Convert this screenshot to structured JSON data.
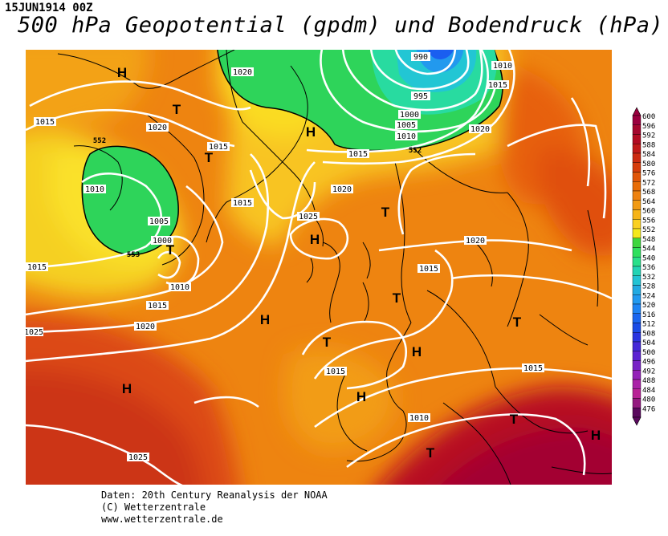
{
  "header": {
    "date": "15JUN1914 00Z",
    "title": "500 hPa Geopotential (gpdm) und Bodendruck (hPa)"
  },
  "map": {
    "pressure_centers": [
      {
        "label": "H",
        "kind": "high"
      },
      {
        "label": "T",
        "kind": "low"
      },
      {
        "label": "H",
        "kind": "high"
      },
      {
        "label": "T",
        "kind": "low"
      },
      {
        "label": "T",
        "kind": "low"
      },
      {
        "label": "H",
        "kind": "high"
      },
      {
        "label": "T",
        "kind": "low"
      },
      {
        "label": "H",
        "kind": "high"
      },
      {
        "label": "T",
        "kind": "low"
      },
      {
        "label": "T",
        "kind": "low"
      },
      {
        "label": "H",
        "kind": "high"
      },
      {
        "label": "T",
        "kind": "low"
      },
      {
        "label": "H",
        "kind": "high"
      },
      {
        "label": "H",
        "kind": "high"
      },
      {
        "label": "T",
        "kind": "low"
      },
      {
        "label": "T",
        "kind": "low"
      },
      {
        "label": "H",
        "kind": "high"
      }
    ],
    "isobar_labels": [
      "990",
      "995",
      "1000",
      "1005",
      "1010",
      "1010",
      "1015",
      "1015",
      "1020",
      "1015",
      "1020",
      "1015",
      "1020",
      "1015",
      "1010",
      "1005",
      "1000",
      "1010",
      "1015",
      "1020",
      "1025",
      "1020",
      "1025",
      "1020",
      "1015",
      "1015",
      "1015",
      "1015",
      "1010",
      "1025"
    ],
    "geopotential_labels": [
      "552",
      "553",
      "552"
    ],
    "colors": {
      "land_outline": "#000000",
      "isobar": "#ffffff",
      "geopotential_contour": "#000000"
    }
  },
  "legend": {
    "levels": [
      "600",
      "596",
      "592",
      "588",
      "584",
      "580",
      "576",
      "572",
      "568",
      "564",
      "560",
      "556",
      "552",
      "548",
      "544",
      "540",
      "536",
      "532",
      "528",
      "524",
      "520",
      "516",
      "512",
      "508",
      "504",
      "500",
      "496",
      "492",
      "488",
      "484",
      "480",
      "476"
    ],
    "colors": [
      "#9b003f",
      "#a5062e",
      "#b20a22",
      "#c01818",
      "#cc2a10",
      "#d63c0b",
      "#e05508",
      "#e86c06",
      "#ee8210",
      "#f29a12",
      "#f6b418",
      "#fad020",
      "#f4e81c",
      "#3ed63e",
      "#2ee05e",
      "#28e08a",
      "#22d4b4",
      "#22c4d4",
      "#22aae2",
      "#229af0",
      "#1e84f4",
      "#1a66f0",
      "#1a4ce6",
      "#2a34e0",
      "#4428d8",
      "#5c22d2",
      "#7822c6",
      "#9422b8",
      "#aa22a8",
      "#b82296",
      "#941a80",
      "#5a0a5e"
    ]
  },
  "credits": {
    "line1": "Daten: 20th Century Reanalysis der NOAA",
    "line2": "(C) Wetterzentrale",
    "line3": "www.wetterzentrale.de"
  }
}
